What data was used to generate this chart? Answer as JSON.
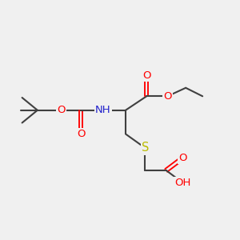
{
  "bg_color": "#f0f0f0",
  "atom_color_C": "#404040",
  "atom_color_O": "#ff0000",
  "atom_color_N": "#2222cc",
  "atom_color_S": "#bbbb00",
  "atom_color_H": "#707070",
  "bond_color": "#404040",
  "bond_width": 1.5,
  "font_size_atom": 9.5,
  "figsize": [
    3.0,
    3.0
  ],
  "dpi": 100,
  "xlim": [
    0.0,
    8.5
  ],
  "ylim": [
    1.0,
    7.5
  ]
}
